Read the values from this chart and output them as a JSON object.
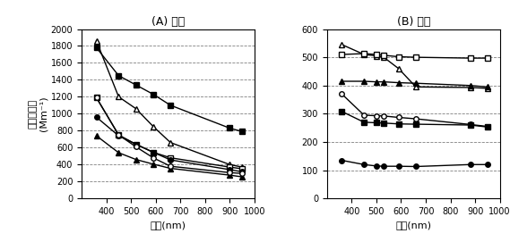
{
  "title_A": "(A) 박무",
  "title_B": "(B) 황사",
  "xlabel": "파장(nm)",
  "ylabel": "빛산란계수\n(Mm⁻¹)",
  "panel_A": {
    "xlim": [
      300,
      1000
    ],
    "ylim": [
      0,
      2000
    ],
    "yticks": [
      0,
      200,
      400,
      600,
      800,
      1000,
      1200,
      1400,
      1600,
      1800,
      2000
    ],
    "xticks": [
      400,
      500,
      600,
      700,
      800,
      900,
      1000
    ],
    "series": [
      {
        "x": [
          360,
          450,
          520,
          590,
          660,
          900,
          950
        ],
        "y": [
          1780,
          1450,
          1340,
          1230,
          1100,
          830,
          790
        ],
        "marker": "s",
        "filled": true
      },
      {
        "x": [
          360,
          450,
          520,
          590,
          660,
          900,
          950
        ],
        "y": [
          1860,
          1200,
          1060,
          850,
          660,
          400,
          370
        ],
        "marker": "^",
        "filled": false
      },
      {
        "x": [
          360,
          450,
          520,
          590,
          660,
          900,
          950
        ],
        "y": [
          1190,
          750,
          640,
          545,
          480,
          370,
          350
        ],
        "marker": "s",
        "filled": false
      },
      {
        "x": [
          360,
          450,
          520,
          590,
          660,
          900,
          950
        ],
        "y": [
          960,
          740,
          640,
          545,
          455,
          340,
          315
        ],
        "marker": "o",
        "filled": true
      },
      {
        "x": [
          360,
          450,
          520,
          590,
          660,
          900,
          950
        ],
        "y": [
          740,
          540,
          460,
          405,
          355,
          275,
          255
        ],
        "marker": "^",
        "filled": true
      },
      {
        "x": [
          360,
          450,
          520,
          590,
          660,
          900,
          950
        ],
        "y": [
          1190,
          750,
          610,
          480,
          380,
          305,
          295
        ],
        "marker": "o",
        "filled": false
      }
    ]
  },
  "panel_B": {
    "xlim": [
      300,
      1000
    ],
    "ylim": [
      0,
      600
    ],
    "yticks": [
      0,
      100,
      200,
      300,
      400,
      500,
      600
    ],
    "xticks": [
      400,
      500,
      600,
      700,
      800,
      900,
      1000
    ],
    "series": [
      {
        "x": [
          360,
          450,
          500,
          530,
          590,
          660,
          880,
          950
        ],
        "y": [
          545,
          510,
          505,
          500,
          460,
          395,
          393,
          390
        ],
        "marker": "^",
        "filled": false
      },
      {
        "x": [
          360,
          450,
          500,
          530,
          590,
          660,
          880,
          950
        ],
        "y": [
          510,
          513,
          510,
          507,
          502,
          500,
          497,
          497
        ],
        "marker": "s",
        "filled": false
      },
      {
        "x": [
          360,
          450,
          500,
          530,
          590,
          660,
          880,
          950
        ],
        "y": [
          415,
          415,
          413,
          413,
          410,
          408,
          400,
          395
        ],
        "marker": "^",
        "filled": true
      },
      {
        "x": [
          360,
          450,
          500,
          530,
          590,
          660,
          880,
          950
        ],
        "y": [
          370,
          295,
          293,
          292,
          287,
          282,
          262,
          255
        ],
        "marker": "o",
        "filled": false
      },
      {
        "x": [
          360,
          450,
          500,
          530,
          590,
          660,
          880,
          950
        ],
        "y": [
          308,
          270,
          268,
          267,
          264,
          263,
          260,
          253
        ],
        "marker": "s",
        "filled": true
      },
      {
        "x": [
          360,
          450,
          500,
          530,
          590,
          660,
          880,
          950
        ],
        "y": [
          135,
          120,
          115,
          114,
          114,
          113,
          120,
          120
        ],
        "marker": "o",
        "filled": true
      }
    ]
  }
}
